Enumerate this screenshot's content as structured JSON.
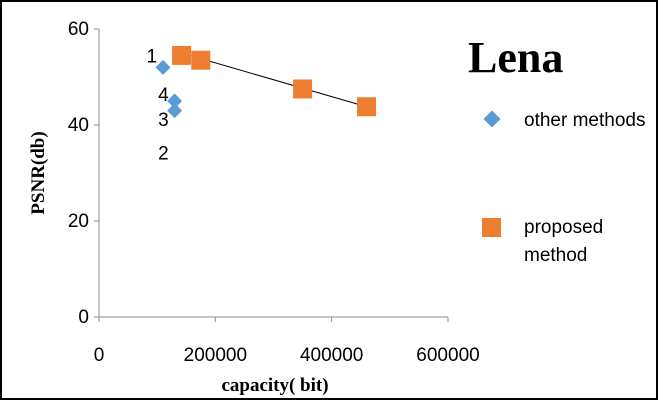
{
  "chart_data": {
    "type": "scatter",
    "legend_title": "Lena",
    "xlabel": "capacity( bit)",
    "ylabel": "PSNR(db)",
    "xlim": [
      0,
      600000
    ],
    "ylim": [
      0,
      60
    ],
    "xticks": [
      "0",
      "200000",
      "400000",
      "600000"
    ],
    "yticks": [
      "0",
      "20",
      "40",
      "60"
    ],
    "grid": false,
    "legend_placement": "right",
    "series": [
      {
        "name": " other methods",
        "marker": "diamond",
        "color": "#5b9bd5",
        "points": [
          {
            "x": 110000,
            "y": 52
          },
          {
            "x": 130000,
            "y": 45
          },
          {
            "x": 130000,
            "y": 43
          }
        ]
      },
      {
        "name": "proposed method",
        "marker": "square",
        "color": "#ed7d31",
        "points": [
          {
            "x": 142000,
            "y": 54.5
          },
          {
            "x": 175000,
            "y": 53.5
          },
          {
            "x": 350000,
            "y": 47.5
          },
          {
            "x": 460000,
            "y": 43.8
          }
        ]
      }
    ],
    "trendline": {
      "color": "#000000",
      "from": {
        "x": 142000,
        "y": 55
      },
      "to": {
        "x": 460000,
        "y": 43.8
      }
    },
    "annotations": [
      {
        "text": "1",
        "x": 92000,
        "y": 54.5
      },
      {
        "text": "4",
        "x": 112000,
        "y": 46.5
      },
      {
        "text": "3",
        "x": 112000,
        "y": 41.3
      },
      {
        "text": "2",
        "x": 112000,
        "y": 34.3
      }
    ]
  }
}
